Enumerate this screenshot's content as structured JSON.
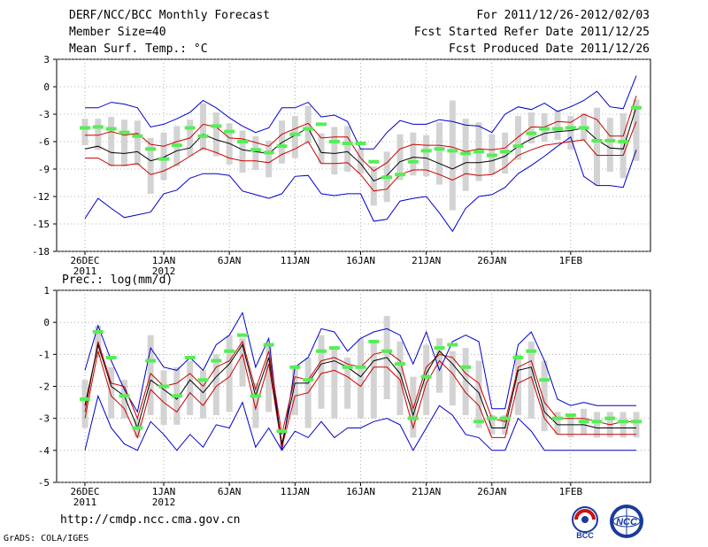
{
  "header": {
    "left": [
      "DERF/NCC/BCC Monthly Forecast",
      "Member Size=40",
      "Mean Surf. Temp.: °C"
    ],
    "right": [
      "For 2011/12/26-2012/02/03",
      "Fcst Started Refer Date 2011/12/25",
      "Fcst Produced Date 2011/12/26"
    ]
  },
  "footer": {
    "url": "http://cmdp.ncc.cma.gov.cn",
    "credit": "GrADS: COLA/IGES"
  },
  "logos": {
    "bcc": "BCC",
    "ncc": "NCC"
  },
  "colors": {
    "box": "#d3d3d3",
    "mean": "#000000",
    "spread": "#cc0000",
    "envelope": "#0000cc",
    "obs": "#55ee55",
    "grid": "#9a9a9a"
  },
  "chart_data": [
    {
      "type": "line",
      "title": "Mean Surf. Temp.: °C",
      "ylabel": "°C",
      "ylim": [
        -18,
        3
      ],
      "yticks": [
        "3",
        "0",
        "-3",
        "-6",
        "-9",
        "-12",
        "-15",
        "-18"
      ],
      "xticks": [
        {
          "label": "26DEC",
          "sub": "2011",
          "day": 0
        },
        {
          "label": "1JAN",
          "sub": "2012",
          "day": 6
        },
        {
          "label": "6JAN",
          "sub": "",
          "day": 11
        },
        {
          "label": "11JAN",
          "sub": "",
          "day": 16
        },
        {
          "label": "16JAN",
          "sub": "",
          "day": 21
        },
        {
          "label": "21JAN",
          "sub": "",
          "day": 26
        },
        {
          "label": "26JAN",
          "sub": "",
          "day": 31
        },
        {
          "label": "1FEB",
          "sub": "",
          "day": 37
        }
      ],
      "series": [
        {
          "name": "ensemble max",
          "values": [
            -2.3,
            -2.3,
            -1.7,
            -1.9,
            -2.3,
            -4.4,
            -4.1,
            -3.5,
            -2.8,
            -1.5,
            -2.3,
            -3.4,
            -4.3,
            -5.0,
            -4.5,
            -2.3,
            -2.3,
            -1.7,
            -3.3,
            -3.1,
            -3.8,
            -6.8,
            -6.8,
            -5.0,
            -3.7,
            -4.1,
            -4.1,
            -3.6,
            -3.8,
            -4.2,
            -4.3,
            -5.0,
            -3.0,
            -2.2,
            -2.5,
            -1.8,
            -2.7,
            -2.2,
            -1.5,
            -0.5,
            -2.2,
            -2.4,
            1.2
          ]
        },
        {
          "name": "spread upper",
          "values": [
            -5.3,
            -5.3,
            -4.9,
            -5.3,
            -5.1,
            -6.3,
            -6.5,
            -6.0,
            -5.6,
            -4.1,
            -4.4,
            -5.6,
            -5.7,
            -6.1,
            -6.5,
            -5.2,
            -4.6,
            -4.0,
            -5.6,
            -5.5,
            -5.5,
            -7.8,
            -9.2,
            -8.3,
            -6.8,
            -6.3,
            -6.4,
            -6.4,
            -6.6,
            -7.1,
            -6.8,
            -6.9,
            -6.7,
            -5.5,
            -4.4,
            -4.4,
            -3.8,
            -3.9,
            -3.0,
            -3.6,
            -5.4,
            -5.4,
            -1.0
          ]
        },
        {
          "name": "ensemble mean",
          "values": [
            -6.8,
            -6.5,
            -7.2,
            -7.3,
            -7.1,
            -8.1,
            -7.7,
            -7.0,
            -6.7,
            -5.2,
            -5.8,
            -6.2,
            -6.9,
            -7.1,
            -7.3,
            -6.1,
            -5.3,
            -4.5,
            -7.2,
            -7.3,
            -7.1,
            -8.4,
            -10.3,
            -9.7,
            -8.2,
            -7.7,
            -7.8,
            -8.4,
            -9.0,
            -8.3,
            -8.3,
            -8.1,
            -7.6,
            -6.5,
            -5.7,
            -5.1,
            -4.9,
            -4.8,
            -4.5,
            -5.8,
            -6.7,
            -6.8,
            -2.2
          ]
        },
        {
          "name": "spread lower",
          "values": [
            -7.8,
            -7.8,
            -8.6,
            -8.6,
            -8.4,
            -9.6,
            -9.2,
            -8.5,
            -7.6,
            -6.7,
            -7.2,
            -7.8,
            -8.1,
            -8.1,
            -8.3,
            -7.4,
            -6.8,
            -6.0,
            -8.4,
            -8.4,
            -8.3,
            -9.6,
            -11.4,
            -11.2,
            -9.6,
            -9.1,
            -9.1,
            -9.6,
            -10.2,
            -9.5,
            -9.7,
            -9.6,
            -8.8,
            -7.5,
            -6.9,
            -6.4,
            -6.2,
            -6.0,
            -5.8,
            -7.5,
            -7.5,
            -7.5,
            -3.8
          ]
        },
        {
          "name": "ensemble min",
          "values": [
            -14.4,
            -12.2,
            -13.3,
            -14.3,
            -14.0,
            -13.7,
            -11.7,
            -11.3,
            -10.0,
            -9.5,
            -9.5,
            -9.7,
            -11.4,
            -11.8,
            -12.2,
            -11.7,
            -9.8,
            -9.7,
            -11.7,
            -11.9,
            -11.7,
            -11.7,
            -14.7,
            -14.5,
            -12.5,
            -12.2,
            -12.0,
            -13.8,
            -15.8,
            -13.3,
            -12.0,
            -11.8,
            -11.0,
            -9.5,
            -8.6,
            -7.6,
            -6.5,
            -5.5,
            -9.8,
            -10.8,
            -10.8,
            -11.0,
            -6.9
          ]
        },
        {
          "name": "observed",
          "values": [
            -4.5,
            -4.4,
            -4.6,
            -5.0,
            -5.4,
            -6.8,
            -7.9,
            -6.4,
            -4.5,
            -5.4,
            -4.3,
            -4.9,
            -6.0,
            -6.9,
            -7.2,
            -6.5,
            -5.2,
            -4.6,
            -4.1,
            -6.0,
            -6.2,
            -6.2,
            -8.2,
            -9.9,
            -9.6,
            -8.2,
            -7.0,
            -6.8,
            -7.0,
            -7.3,
            -7.1,
            -7.5,
            -7.1,
            -6.5,
            -5.1,
            -4.6,
            -4.6,
            -4.5,
            -4.5,
            -5.9,
            -5.9,
            -6.0,
            -2.3
          ]
        },
        {
          "name": "box top",
          "values": [
            -3.5,
            -3.5,
            -3.3,
            -3.6,
            -3.7,
            -5.6,
            -5.0,
            -4.3,
            -3.6,
            -1.8,
            -2.8,
            -4.0,
            -4.8,
            -5.4,
            -5.9,
            -3.7,
            -3.2,
            -2.1,
            -5.1,
            -4.4,
            -4.3,
            -6.7,
            -8.7,
            -7.1,
            -5.2,
            -5.0,
            -5.3,
            -3.9,
            -1.5,
            -3.5,
            -3.9,
            -5.2,
            -5.0,
            -3.2,
            -2.8,
            -2.9,
            -2.6,
            -3.2,
            -2.9,
            -2.3,
            -3.4,
            -2.9,
            -1.4
          ]
        },
        {
          "name": "box bottom",
          "values": [
            -6.4,
            -6.9,
            -8.7,
            -8.7,
            -8.6,
            -11.7,
            -10.2,
            -8.7,
            -7.6,
            -7.0,
            -7.6,
            -8.5,
            -9.4,
            -9.1,
            -9.9,
            -8.4,
            -7.8,
            -6.2,
            -8.4,
            -9.6,
            -9.3,
            -9.5,
            -13.0,
            -12.6,
            -10.2,
            -9.7,
            -9.8,
            -10.7,
            -13.5,
            -11.4,
            -10.3,
            -9.6,
            -9.5,
            -8.0,
            -6.2,
            -6.0,
            -5.8,
            -6.9,
            -5.9,
            -10.8,
            -9.3,
            -10.0,
            -8.1
          ]
        }
      ]
    },
    {
      "type": "line",
      "title": "Prec.: log(mm/d)",
      "ylabel": "log(mm/d)",
      "ylim": [
        -5,
        1
      ],
      "yticks": [
        "1",
        "0",
        "-1",
        "-2",
        "-3",
        "-4",
        "-5"
      ],
      "xticks": [
        {
          "label": "26DEC",
          "sub": "2011",
          "day": 0
        },
        {
          "label": "1JAN",
          "sub": "2012",
          "day": 6
        },
        {
          "label": "6JAN",
          "sub": "",
          "day": 11
        },
        {
          "label": "11JAN",
          "sub": "",
          "day": 16
        },
        {
          "label": "16JAN",
          "sub": "",
          "day": 21
        },
        {
          "label": "21JAN",
          "sub": "",
          "day": 26
        },
        {
          "label": "26JAN",
          "sub": "",
          "day": 31
        },
        {
          "label": "1FEB",
          "sub": "",
          "day": 37
        }
      ],
      "series": [
        {
          "name": "ensemble max",
          "values": [
            -1.5,
            -0.1,
            -1.2,
            -2.1,
            -2.8,
            -0.8,
            -1.4,
            -1.5,
            -1.1,
            -1.5,
            -0.7,
            -0.4,
            0.3,
            -1.4,
            -0.5,
            -4.0,
            -1.4,
            -1.1,
            -0.2,
            -0.3,
            -0.9,
            -0.5,
            -0.3,
            -0.2,
            -0.4,
            -1.3,
            -0.3,
            -1.5,
            -0.6,
            -0.4,
            -0.6,
            -2.7,
            -2.7,
            -0.7,
            -0.3,
            -1.2,
            -2.4,
            -2.6,
            -2.5,
            -2.6,
            -2.6,
            -2.6,
            -2.6
          ]
        },
        {
          "name": "spread upper",
          "values": [
            -2.8,
            -0.6,
            -1.9,
            -2.0,
            -3.0,
            -1.6,
            -2.0,
            -1.9,
            -1.6,
            -2.0,
            -1.4,
            -1.2,
            -0.6,
            -2.1,
            -0.9,
            -3.5,
            -1.7,
            -1.8,
            -1.2,
            -1.1,
            -1.3,
            -1.4,
            -1.0,
            -0.9,
            -1.2,
            -2.7,
            -1.4,
            -1.0,
            -1.1,
            -1.6,
            -1.9,
            -3.0,
            -3.1,
            -1.4,
            -1.2,
            -2.5,
            -3.0,
            -3.0,
            -3.0,
            -3.1,
            -3.2,
            -3.1,
            -3.1
          ]
        },
        {
          "name": "ensemble mean",
          "values": [
            -2.6,
            -0.7,
            -2.0,
            -2.3,
            -3.3,
            -1.8,
            -2.1,
            -2.4,
            -1.8,
            -2.2,
            -1.7,
            -1.3,
            -0.7,
            -2.3,
            -1.1,
            -3.8,
            -1.9,
            -1.9,
            -1.3,
            -1.2,
            -1.4,
            -1.7,
            -1.2,
            -1.1,
            -1.6,
            -2.9,
            -1.6,
            -0.9,
            -1.3,
            -1.8,
            -2.2,
            -3.3,
            -3.3,
            -1.5,
            -1.4,
            -2.8,
            -3.2,
            -3.2,
            -3.2,
            -3.3,
            -3.3,
            -3.3,
            -3.3
          ]
        },
        {
          "name": "spread lower",
          "values": [
            -3.0,
            -0.9,
            -2.3,
            -2.7,
            -3.6,
            -2.1,
            -2.5,
            -2.8,
            -2.2,
            -2.6,
            -2.0,
            -1.7,
            -1.0,
            -2.7,
            -1.3,
            -3.9,
            -2.3,
            -2.2,
            -1.6,
            -1.5,
            -1.7,
            -2.0,
            -1.4,
            -1.4,
            -1.8,
            -3.3,
            -1.9,
            -1.2,
            -1.6,
            -2.2,
            -2.6,
            -3.6,
            -3.6,
            -1.9,
            -1.7,
            -3.0,
            -3.5,
            -3.5,
            -3.5,
            -3.5,
            -3.5,
            -3.5,
            -3.5
          ]
        },
        {
          "name": "ensemble min",
          "values": [
            -4.0,
            -2.3,
            -3.3,
            -3.8,
            -4.0,
            -3.1,
            -3.5,
            -4.0,
            -3.5,
            -3.9,
            -3.2,
            -3.3,
            -2.5,
            -3.9,
            -3.3,
            -4.0,
            -3.4,
            -3.6,
            -3.1,
            -3.6,
            -3.3,
            -3.3,
            -3.1,
            -3.0,
            -3.2,
            -4.0,
            -3.3,
            -2.6,
            -2.9,
            -3.5,
            -3.6,
            -4.0,
            -4.0,
            -3.0,
            -3.4,
            -4.0,
            -4.0,
            -4.0,
            -4.0,
            -4.0,
            -4.0,
            -4.0,
            -4.0
          ]
        },
        {
          "name": "observed",
          "values": [
            -2.4,
            -0.3,
            -1.1,
            -2.3,
            -3.3,
            -1.2,
            -2.0,
            -2.3,
            -1.1,
            -1.8,
            -1.2,
            -0.9,
            -0.4,
            -2.3,
            -0.7,
            -3.4,
            -1.4,
            -1.8,
            -0.9,
            -0.8,
            -1.4,
            -1.4,
            -0.6,
            -0.9,
            -1.3,
            -3.0,
            -1.7,
            -0.8,
            -0.7,
            -1.4,
            -3.1,
            -3.0,
            -3.0,
            -1.1,
            -0.9,
            -1.8,
            -3.0,
            -2.9,
            -3.1,
            -3.1,
            -3.0,
            -3.1,
            -3.1
          ]
        },
        {
          "name": "box top",
          "values": [
            -1.8,
            -0.1,
            -1.4,
            -1.8,
            -3.0,
            -0.4,
            -1.5,
            -1.4,
            -1.2,
            -1.5,
            -1.0,
            -0.4,
            -0.5,
            -1.9,
            -0.7,
            -3.8,
            -1.4,
            -1.1,
            -0.4,
            -0.8,
            -1.1,
            -0.5,
            -0.6,
            0.2,
            -0.6,
            -1.7,
            -0.7,
            -0.5,
            -0.9,
            -0.8,
            -1.2,
            -2.9,
            -2.9,
            -1.0,
            -0.6,
            -1.2,
            -2.8,
            -2.9,
            -2.7,
            -2.8,
            -2.8,
            -2.8,
            -2.8
          ]
        },
        {
          "name": "box bottom",
          "values": [
            -3.3,
            -1.1,
            -3.0,
            -3.0,
            -3.6,
            -2.9,
            -3.2,
            -3.2,
            -2.9,
            -3.0,
            -2.9,
            -2.8,
            -2.0,
            -3.3,
            -2.8,
            -3.9,
            -2.9,
            -3.3,
            -2.7,
            -3.0,
            -2.7,
            -3.0,
            -3.0,
            -2.4,
            -2.9,
            -3.6,
            -2.9,
            -2.2,
            -2.6,
            -2.9,
            -3.3,
            -3.5,
            -3.5,
            -2.9,
            -3.0,
            -3.4,
            -3.5,
            -3.6,
            -3.5,
            -3.6,
            -3.6,
            -3.6,
            -3.6
          ]
        }
      ]
    }
  ]
}
